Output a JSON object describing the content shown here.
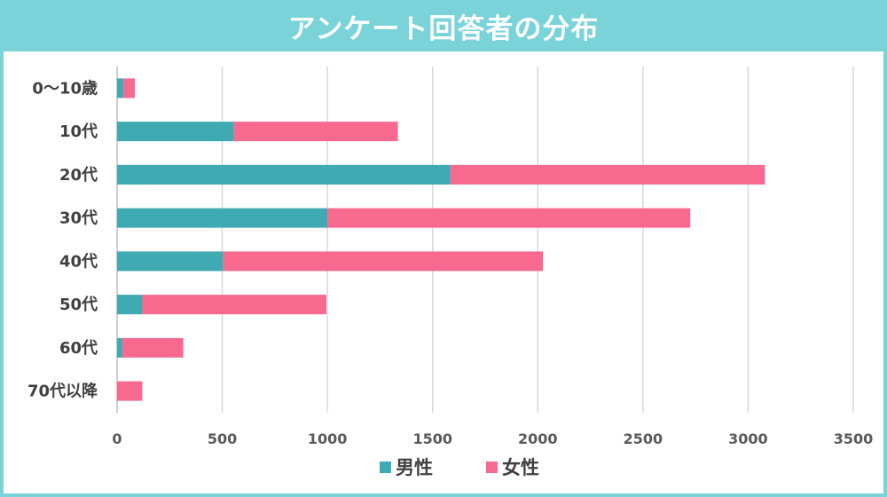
{
  "chart_data": {
    "type": "bar",
    "orientation": "horizontal",
    "stacked": true,
    "title": "アンケート回答者の分布",
    "categories": [
      "0〜10歳",
      "10代",
      "20代",
      "30代",
      "40代",
      "50代",
      "60代",
      "70代以降"
    ],
    "series": [
      {
        "name": "男性",
        "color": "#3faab1",
        "values": [
          30,
          555,
          1585,
          1000,
          505,
          120,
          25,
          0
        ]
      },
      {
        "name": "女性",
        "color": "#f7698f",
        "values": [
          55,
          780,
          1495,
          1725,
          1520,
          875,
          290,
          120
        ]
      }
    ],
    "xlim": [
      0,
      3500
    ],
    "xticks": [
      "0",
      "500",
      "1000",
      "1500",
      "2000",
      "2500",
      "3000",
      "3500"
    ],
    "grid": true,
    "legend_position": "bottom"
  }
}
